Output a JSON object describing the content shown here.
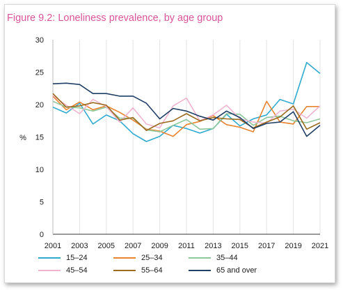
{
  "chart_data": {
    "type": "line",
    "title": "Figure 9.2: Loneliness prevalence, by age group",
    "ylabel": "%",
    "xlabel": "",
    "ylim": [
      0,
      30
    ],
    "xlim": [
      2001,
      2021
    ],
    "yticks": [
      "0",
      "5",
      "10",
      "15",
      "20",
      "25",
      "30"
    ],
    "xticks": [
      "2001",
      "2003",
      "2005",
      "2007",
      "2009",
      "2011",
      "2013",
      "2015",
      "2017",
      "2019",
      "2021"
    ],
    "grid": "vertical",
    "legend_position": "bottom",
    "x": [
      2001,
      2002,
      2003,
      2004,
      2005,
      2006,
      2007,
      2008,
      2009,
      2010,
      2011,
      2012,
      2013,
      2014,
      2015,
      2016,
      2017,
      2018,
      2019,
      2020,
      2021
    ],
    "series": [
      {
        "name": "15–24",
        "color": "#2eaacf",
        "values": [
          19.6,
          18.7,
          20.2,
          17.0,
          18.4,
          17.5,
          15.5,
          14.3,
          15.1,
          16.8,
          16.3,
          15.6,
          16.3,
          18.5,
          16.7,
          17.8,
          18.4,
          20.8,
          20.1,
          26.5,
          24.8
        ]
      },
      {
        "name": "25–34",
        "color": "#e8832e",
        "values": [
          21.3,
          19.2,
          20.4,
          19.2,
          19.8,
          18.8,
          17.6,
          16.2,
          15.9,
          15.1,
          16.9,
          17.4,
          18.3,
          16.9,
          16.5,
          15.8,
          20.5,
          17.3,
          17.0,
          19.7,
          19.7
        ]
      },
      {
        "name": "35–44",
        "color": "#8dc79a",
        "values": [
          20.5,
          19.6,
          19.5,
          19.0,
          19.6,
          17.9,
          17.9,
          16.1,
          15.8,
          16.8,
          17.7,
          16.2,
          16.3,
          18.6,
          18.5,
          16.8,
          18.0,
          18.2,
          17.5,
          17.2,
          17.8
        ]
      },
      {
        "name": "45–54",
        "color": "#f0b3cf",
        "values": [
          21.4,
          19.9,
          18.6,
          20.8,
          19.7,
          17.3,
          19.5,
          17.0,
          16.4,
          19.8,
          21.0,
          17.5,
          18.4,
          19.9,
          17.8,
          17.3,
          17.1,
          19.0,
          19.3,
          17.9,
          19.8
        ]
      },
      {
        "name": "55–64",
        "color": "#9a6b1e",
        "values": [
          21.7,
          19.6,
          19.8,
          20.3,
          19.9,
          17.6,
          18.0,
          16.0,
          17.1,
          17.5,
          18.6,
          17.5,
          18.0,
          17.8,
          17.7,
          16.4,
          17.3,
          18.1,
          19.8,
          16.2,
          17.2
        ]
      },
      {
        "name": "65 and over",
        "color": "#1f3f66",
        "values": [
          23.2,
          23.3,
          23.1,
          21.7,
          21.7,
          21.3,
          21.3,
          20.2,
          17.8,
          19.4,
          19.0,
          18.2,
          17.6,
          19.0,
          18.0,
          16.3,
          17.1,
          17.3,
          18.9,
          15.1,
          16.8
        ]
      }
    ]
  }
}
